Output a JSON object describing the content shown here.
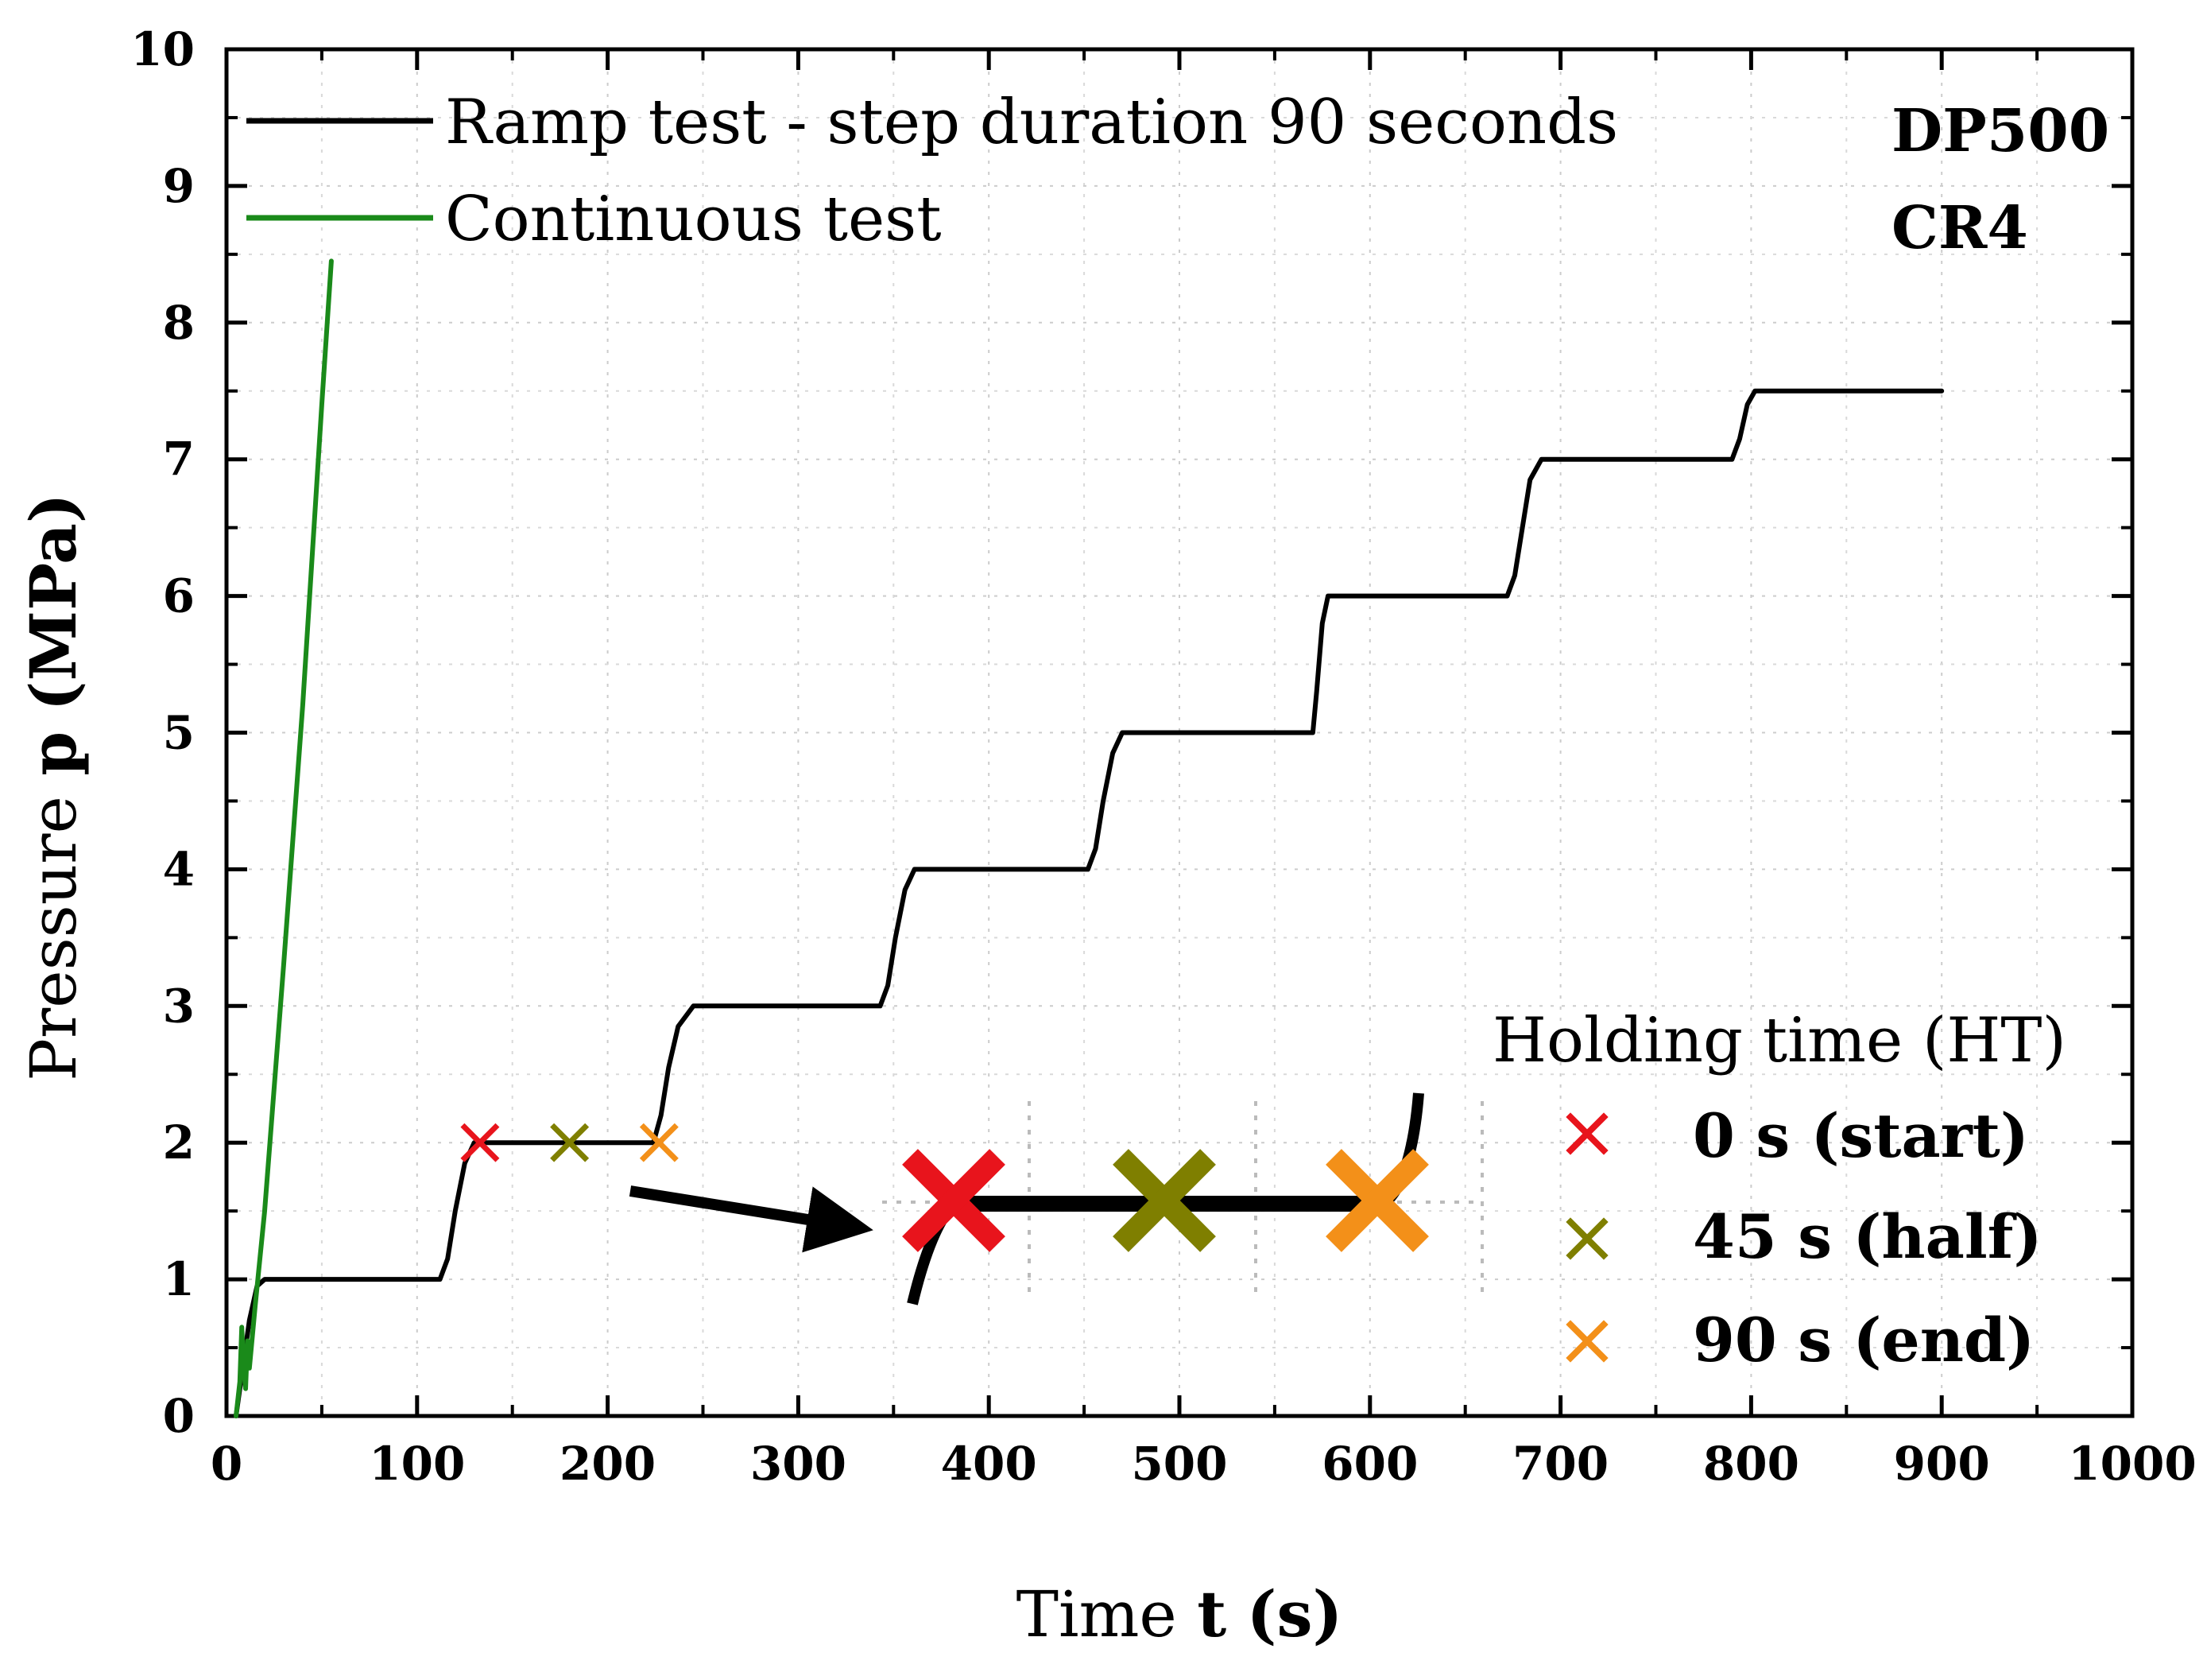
{
  "chart_data": {
    "type": "line",
    "xlabel_prefix": "Time",
    "xlabel_var": "t",
    "xlabel_unit": "(s)",
    "ylabel_prefix": "Pressure",
    "ylabel_var": "p",
    "ylabel_unit": "(MPa)",
    "xlim": [
      0,
      1000
    ],
    "ylim": [
      0,
      10
    ],
    "xticks": [
      0,
      100,
      200,
      300,
      400,
      500,
      600,
      700,
      800,
      900,
      1000
    ],
    "yticks": [
      0,
      1,
      2,
      3,
      4,
      5,
      6,
      7,
      8,
      9,
      10
    ],
    "grid": true,
    "series": [
      {
        "name": "Ramp test - step duration 90 seconds",
        "color": "#000000",
        "x": [
          5,
          8,
          12,
          16,
          20,
          25,
          112,
          116,
          120,
          125,
          130,
          224,
          228,
          232,
          237,
          245,
          343,
          347,
          351,
          356,
          361,
          452,
          456,
          460,
          465,
          470,
          570,
          572,
          575,
          578,
          672,
          676,
          680,
          684,
          690,
          790,
          794,
          798,
          802,
          807,
          900
        ],
        "y": [
          0,
          0.3,
          0.7,
          0.95,
          1,
          1,
          1,
          1.15,
          1.5,
          1.85,
          2,
          2,
          2.2,
          2.55,
          2.85,
          3,
          3,
          3.15,
          3.5,
          3.85,
          4,
          4,
          4.15,
          4.5,
          4.85,
          5,
          5,
          5.3,
          5.8,
          6,
          6,
          6.15,
          6.5,
          6.85,
          7,
          7,
          7.15,
          7.4,
          7.5,
          7.5,
          7.5
        ]
      },
      {
        "name": "Continuous test",
        "color": "#1a8a1a",
        "x": [
          5,
          7,
          8,
          9,
          10,
          11,
          12,
          15,
          20,
          30,
          40,
          50,
          55
        ],
        "y": [
          0,
          0.25,
          0.65,
          0.35,
          0.2,
          0.55,
          0.35,
          0.8,
          1.5,
          3.3,
          5.2,
          7.4,
          8.45
        ]
      }
    ],
    "markers": [
      {
        "name": "0 s (start)",
        "color": "#e8141c",
        "x": 133,
        "y": 2
      },
      {
        "name": "45 s (half)",
        "color": "#7f7f00",
        "x": 180,
        "y": 2
      },
      {
        "name": "90 s (end)",
        "color": "#f39019",
        "x": 227,
        "y": 2
      }
    ],
    "annotations": [
      "DP500",
      "CR4"
    ],
    "marker_legend_title": "Holding time (HT)"
  }
}
